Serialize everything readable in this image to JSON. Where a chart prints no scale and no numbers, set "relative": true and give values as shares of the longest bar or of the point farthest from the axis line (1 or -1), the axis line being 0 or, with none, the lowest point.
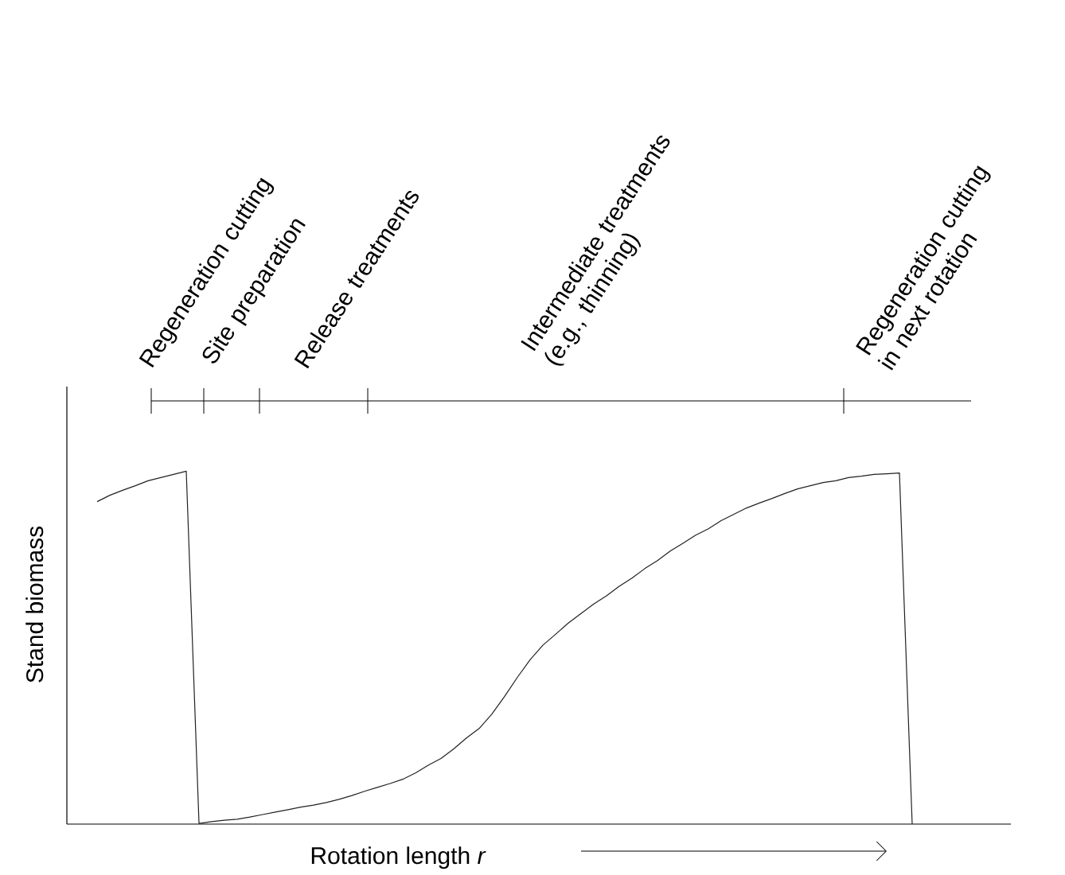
{
  "chart_data": {
    "type": "line",
    "relative": true,
    "tick_labels": false,
    "xlabel": "Rotation length *r*",
    "ylabel": "Stand biomass",
    "annotations": [
      "Regeneration cutting",
      "Site preparation",
      "Release treatments",
      "Intermediate treatments (e.g., thinning)",
      "Regeneration cutting in next rotation"
    ],
    "categories": [
      null,
      null,
      null,
      null,
      null,
      null,
      null,
      null,
      null,
      null,
      null,
      null,
      null,
      null,
      null,
      null,
      null,
      null,
      null,
      null,
      null,
      null,
      null,
      null,
      null,
      null,
      null,
      null,
      null,
      null,
      null,
      null,
      null,
      null,
      null,
      null,
      null,
      null,
      null,
      null,
      null,
      null,
      null,
      null,
      null,
      null,
      null,
      null,
      null,
      null,
      null,
      null,
      null,
      null,
      null,
      null,
      null,
      null,
      null,
      null,
      null,
      null,
      null,
      null,
      null
    ],
    "series": [
      {
        "color": "#222222",
        "values": [
          0.914,
          0.932,
          0.946,
          0.959,
          0.973,
          0.982,
          0.991,
          1.0,
          0.002,
          0.007,
          0.011,
          0.014,
          0.02,
          0.027,
          0.034,
          0.041,
          0.048,
          0.054,
          0.061,
          0.07,
          0.081,
          0.093,
          0.104,
          0.115,
          0.127,
          0.145,
          0.167,
          0.186,
          0.213,
          0.244,
          0.271,
          0.312,
          0.362,
          0.416,
          0.466,
          0.507,
          0.538,
          0.57,
          0.597,
          0.624,
          0.647,
          0.674,
          0.697,
          0.724,
          0.747,
          0.774,
          0.796,
          0.819,
          0.837,
          0.86,
          0.878,
          0.896,
          0.91,
          0.923,
          0.937,
          0.95,
          0.959,
          0.968,
          0.973,
          0.982,
          0.986,
          0.991,
          0.993,
          0.995,
          0.0
        ]
      }
    ]
  }
}
